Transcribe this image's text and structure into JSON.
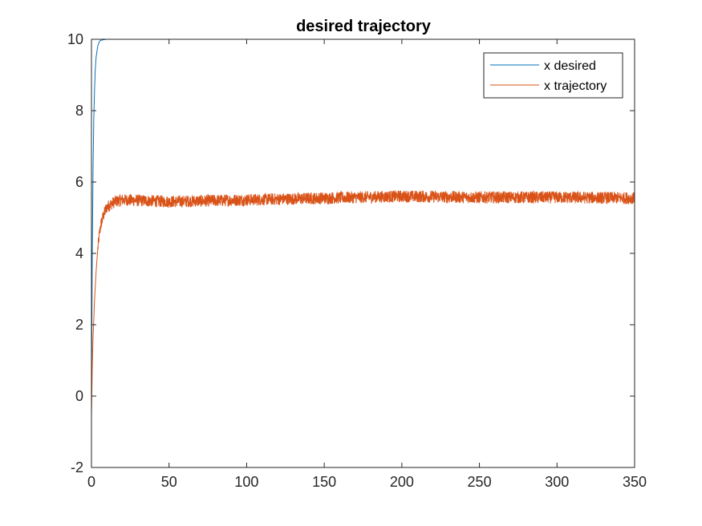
{
  "chart_data": {
    "type": "line",
    "title": "desired trajectory",
    "xlabel": "",
    "ylabel": "",
    "xlim": [
      0,
      350
    ],
    "ylim": [
      -2,
      10
    ],
    "x_ticks": [
      "0",
      "50",
      "100",
      "150",
      "200",
      "250",
      "300",
      "350"
    ],
    "y_ticks": [
      "-2",
      "0",
      "2",
      "4",
      "6",
      "8",
      "10"
    ],
    "grid": false,
    "legend_position": "top-right",
    "series": [
      {
        "name": "x desired",
        "color": "#0072BD",
        "x": [
          0,
          0.5,
          1,
          1.5,
          2,
          2.5,
          3,
          4,
          5,
          6,
          8,
          10,
          350
        ],
        "y": [
          0,
          3.9,
          6.3,
          7.8,
          8.6,
          9.2,
          9.5,
          9.8,
          9.93,
          9.97,
          9.99,
          10,
          10
        ]
      },
      {
        "name": "x trajectory",
        "color": "#D95319",
        "x": [
          0,
          0.5,
          1,
          2,
          3,
          4,
          5,
          6,
          8,
          10,
          15,
          20,
          50,
          100,
          150,
          200,
          250,
          300,
          350
        ],
        "y": [
          -0.6,
          0.8,
          1.6,
          2.7,
          3.5,
          4.1,
          4.5,
          4.8,
          5.1,
          5.3,
          5.45,
          5.5,
          5.45,
          5.5,
          5.55,
          5.6,
          5.57,
          5.57,
          5.55
        ],
        "noise_amplitude": 0.17
      }
    ]
  }
}
